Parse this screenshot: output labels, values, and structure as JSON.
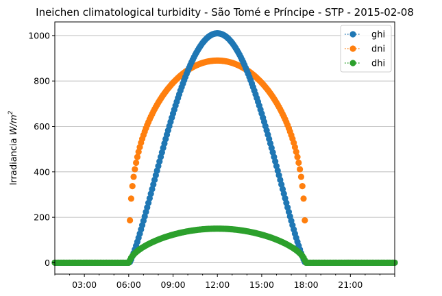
{
  "chart_data": {
    "type": "scatter",
    "title": "Ineichen climatological turbidity - São Tomé e Príncipe - STP - 2015-02-08",
    "ylabel_prefix": "Irradiancia ",
    "ylabel_unit_main": "W/m",
    "ylabel_unit_sup": "2",
    "xlabel": "",
    "x_ticks": [
      {
        "hour": 3,
        "label": "03:00"
      },
      {
        "hour": 6,
        "label": "06:00"
      },
      {
        "hour": 9,
        "label": "09:00"
      },
      {
        "hour": 12,
        "label": "12:00"
      },
      {
        "hour": 15,
        "label": "15:00"
      },
      {
        "hour": 18,
        "label": "18:00"
      },
      {
        "hour": 21,
        "label": "21:00"
      }
    ],
    "y_ticks": [
      {
        "value": 0,
        "label": "0"
      },
      {
        "value": 200,
        "label": "200"
      },
      {
        "value": 400,
        "label": "400"
      },
      {
        "value": 600,
        "label": "600"
      },
      {
        "value": 800,
        "label": "800"
      },
      {
        "value": 1000,
        "label": "1000"
      }
    ],
    "xlim_hours": [
      1,
      24
    ],
    "ylim": [
      -50,
      1060
    ],
    "grid": "horizontal",
    "legend_position": "top-right",
    "sample_interval_minutes": 5,
    "sunrise_hour": 6.05,
    "sunset_hour": 17.95,
    "series": [
      {
        "name": "ghi",
        "color": "#1f77b4",
        "peak_value": 1010,
        "peak_hour": 11.95
      },
      {
        "name": "dni",
        "color": "#ff7f0e",
        "peak_value": 890,
        "peak_hour": 11.95
      },
      {
        "name": "dhi",
        "color": "#2ca02c",
        "peak_value": 150,
        "peak_hour": 11.95
      }
    ]
  }
}
